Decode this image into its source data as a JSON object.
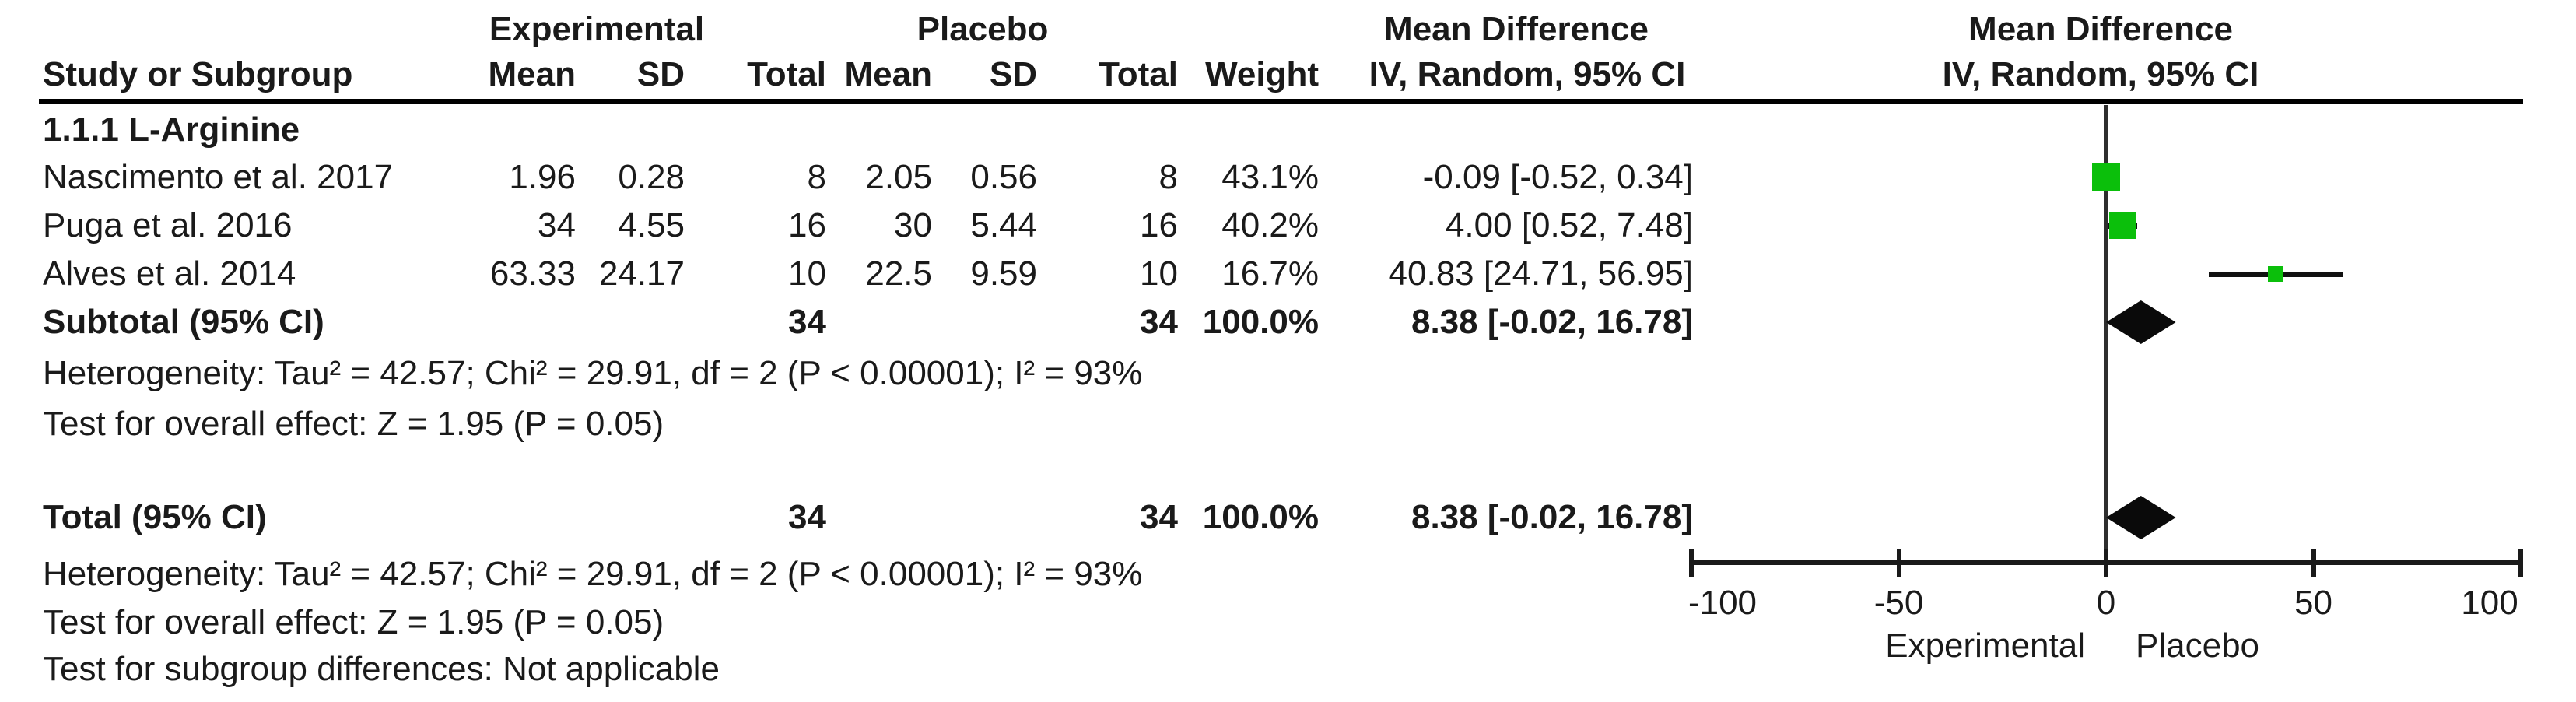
{
  "header": {
    "group_experimental": "Experimental",
    "group_placebo": "Placebo",
    "md_left_line1": "Mean Difference",
    "md_left_line2": "IV, Random, 95% CI",
    "md_right_line1": "Mean Difference",
    "md_right_line2": "IV, Random, 95% CI",
    "study_col": "Study or Subgroup",
    "mean_col": "Mean",
    "sd_col": "SD",
    "total_col": "Total",
    "weight_col": "Weight"
  },
  "table": {
    "subgroup_label": "1.1.1 L-Arginine",
    "rows": [
      {
        "study": "Nascimento et al. 2017",
        "exp_mean": "1.96",
        "exp_sd": "0.28",
        "exp_total": "8",
        "pla_mean": "2.05",
        "pla_sd": "0.56",
        "pla_total": "8",
        "weight": "43.1%",
        "ci_text": "-0.09 [-0.52, 0.34]"
      },
      {
        "study": "Puga et al. 2016",
        "exp_mean": "34",
        "exp_sd": "4.55",
        "exp_total": "16",
        "pla_mean": "30",
        "pla_sd": "5.44",
        "pla_total": "16",
        "weight": "40.2%",
        "ci_text": "4.00 [0.52, 7.48]"
      },
      {
        "study": "Alves et al. 2014",
        "exp_mean": "63.33",
        "exp_sd": "24.17",
        "exp_total": "10",
        "pla_mean": "22.5",
        "pla_sd": "9.59",
        "pla_total": "10",
        "weight": "16.7%",
        "ci_text": "40.83 [24.71, 56.95]"
      }
    ],
    "subtotal": {
      "label": "Subtotal (95% CI)",
      "exp_total": "34",
      "pla_total": "34",
      "weight": "100.0%",
      "ci_text": "8.38 [-0.02, 16.78]"
    },
    "subgroup_heterogeneity": "Heterogeneity: Tau² = 42.57; Chi² = 29.91, df = 2 (P < 0.00001); I² = 93%",
    "subgroup_overall_effect": "Test for overall effect: Z = 1.95 (P = 0.05)",
    "total": {
      "label": "Total (95% CI)",
      "exp_total": "34",
      "pla_total": "34",
      "weight": "100.0%",
      "ci_text": "8.38 [-0.02, 16.78]"
    },
    "total_heterogeneity": "Heterogeneity: Tau² = 42.57; Chi² = 29.91, df = 2 (P < 0.00001); I² = 93%",
    "total_overall_effect": "Test for overall effect: Z = 1.95 (P = 0.05)",
    "subgroup_differences": "Test for subgroup differences: Not applicable"
  },
  "chart_data": {
    "type": "forest",
    "title": "Mean Difference",
    "effect_measure": "IV, Random, 95% CI",
    "xlim": [
      -100,
      100
    ],
    "x_ticks": [
      -100,
      -50,
      0,
      50,
      100
    ],
    "x_tick_labels": [
      "-100",
      "-50",
      "0",
      "50",
      "100"
    ],
    "favours_left_label": "Experimental",
    "favours_right_label": "Placebo",
    "marker_color": "#0bbf0b",
    "line_color": "#111111",
    "diamond_color": "#0a0a0a",
    "subgroup": "1.1.1 L-Arginine",
    "studies": [
      {
        "name": "Nascimento et al. 2017",
        "md": -0.09,
        "ci_low": -0.52,
        "ci_high": 0.34,
        "weight_pct": 43.1
      },
      {
        "name": "Puga et al. 2016",
        "md": 4.0,
        "ci_low": 0.52,
        "ci_high": 7.48,
        "weight_pct": 40.2
      },
      {
        "name": "Alves et al. 2014",
        "md": 40.83,
        "ci_low": 24.71,
        "ci_high": 56.95,
        "weight_pct": 16.7
      }
    ],
    "subtotal": {
      "label": "Subtotal (95% CI)",
      "md": 8.38,
      "ci_low": -0.02,
      "ci_high": 16.78,
      "i_squared": "93%",
      "tau_squared": 42.57,
      "chi_squared": 29.91,
      "df": 2,
      "z": 1.95,
      "p": "0.05"
    },
    "total": {
      "label": "Total (95% CI)",
      "md": 8.38,
      "ci_low": -0.02,
      "ci_high": 16.78
    }
  }
}
